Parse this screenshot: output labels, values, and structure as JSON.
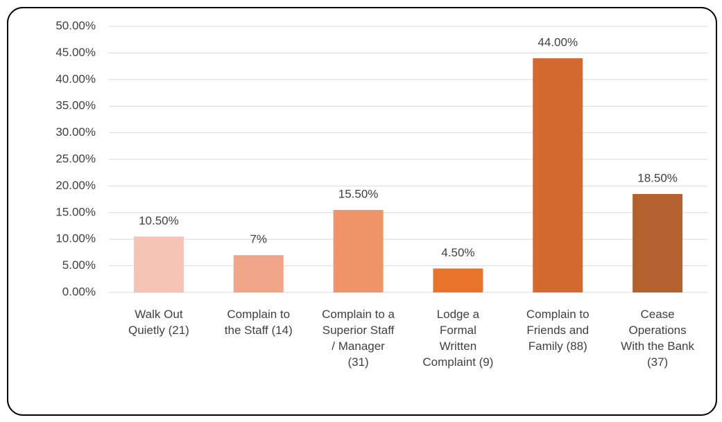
{
  "chart_data": {
    "type": "bar",
    "categories": [
      [
        "Walk Out",
        "Quietly (21)"
      ],
      [
        "Complain to",
        "the Staff  (14)"
      ],
      [
        "Complain to a",
        "Superior Staff",
        "/ Manager",
        "(31)"
      ],
      [
        "Lodge a",
        "Formal",
        "Written",
        "Complaint (9)"
      ],
      [
        "Complain to",
        "Friends and",
        "Family (88)"
      ],
      [
        "Cease",
        "Operations",
        "With the Bank",
        "(37)"
      ]
    ],
    "values": [
      10.5,
      7,
      15.5,
      4.5,
      44,
      18.5
    ],
    "value_labels": [
      "10.50%",
      "7%",
      "15.50%",
      "4.50%",
      "44.00%",
      "18.50%"
    ],
    "colors": [
      "#f5c4b4",
      "#f2a689",
      "#f0946b",
      "#e8742c",
      "#d3692f",
      "#b3622f"
    ],
    "ylim": [
      0,
      50
    ],
    "yticks": [
      {
        "value": 0,
        "label": "0.00%"
      },
      {
        "value": 5,
        "label": "5.00%"
      },
      {
        "value": 10,
        "label": "10.00%"
      },
      {
        "value": 15,
        "label": "15.00%"
      },
      {
        "value": 20,
        "label": "20.00%"
      },
      {
        "value": 25,
        "label": "25.00%"
      },
      {
        "value": 30,
        "label": "30.00%"
      },
      {
        "value": 35,
        "label": "35.00%"
      },
      {
        "value": 40,
        "label": "40.00%"
      },
      {
        "value": 45,
        "label": "45.00%"
      },
      {
        "value": 50,
        "label": "50.00%"
      }
    ],
    "grid": true
  }
}
